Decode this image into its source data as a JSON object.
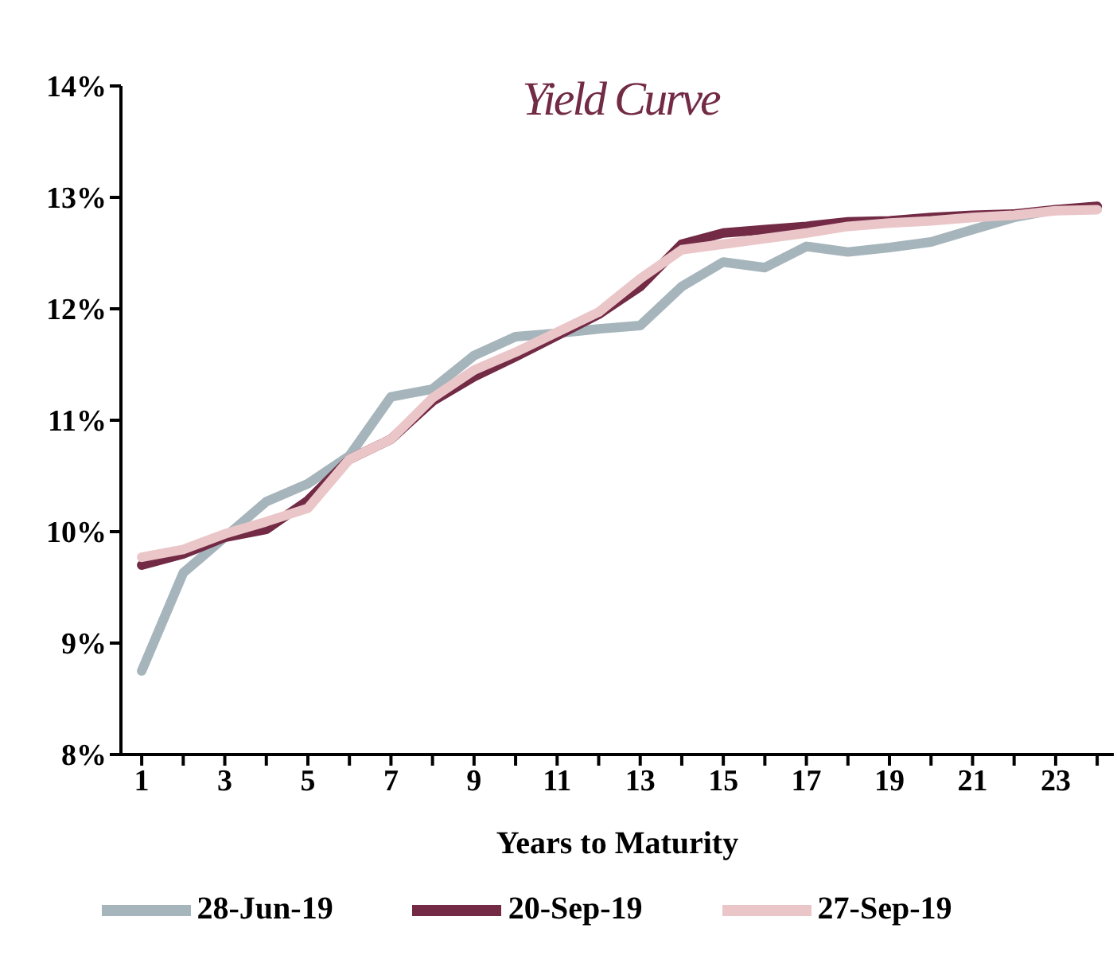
{
  "chart_data": {
    "type": "line",
    "title": "Yield Curve",
    "xlabel": "Years to Maturity",
    "x": [
      1,
      2,
      3,
      4,
      5,
      6,
      7,
      8,
      9,
      10,
      11,
      12,
      13,
      14,
      15,
      16,
      17,
      18,
      19,
      20,
      21,
      22,
      23,
      24
    ],
    "xlim": [
      0.5,
      24.4
    ],
    "xticks": [
      1,
      {
        "value": 2,
        "label": null
      },
      3,
      {
        "value": 4,
        "label": null
      },
      5,
      {
        "value": 6,
        "label": null
      },
      7,
      {
        "value": 8,
        "label": null
      },
      9,
      {
        "value": 10,
        "label": null
      },
      11,
      {
        "value": 12,
        "label": null
      },
      13,
      {
        "value": 14,
        "label": null
      },
      15,
      {
        "value": 16,
        "label": null
      },
      17,
      {
        "value": 18,
        "label": null
      },
      19,
      {
        "value": 20,
        "label": null
      },
      21,
      {
        "value": 22,
        "label": null
      },
      23,
      {
        "value": 24,
        "label": null
      }
    ],
    "series": [
      {
        "name": "28-Jun-19",
        "color": "#a5b5bb",
        "values": [
          8.75,
          9.63,
          9.95,
          10.27,
          10.43,
          10.68,
          11.21,
          11.28,
          11.58,
          11.75,
          11.78,
          11.82,
          11.85,
          12.2,
          12.42,
          12.37,
          12.56,
          12.51,
          12.55,
          12.6,
          12.71,
          12.82,
          12.89,
          12.9
        ]
      },
      {
        "name": "20-Sep-19",
        "color": "#722a45",
        "values": [
          9.7,
          9.8,
          9.95,
          10.02,
          10.28,
          10.65,
          10.83,
          11.17,
          11.39,
          11.57,
          11.76,
          11.95,
          12.2,
          12.58,
          12.68,
          12.71,
          12.74,
          12.78,
          12.79,
          12.82,
          12.84,
          12.85,
          12.89,
          12.92
        ]
      },
      {
        "name": "27-Sep-19",
        "color": "#ebc6c9",
        "values": [
          9.77,
          9.84,
          9.98,
          10.09,
          10.21,
          10.65,
          10.83,
          11.2,
          11.45,
          11.61,
          11.79,
          11.97,
          12.27,
          12.53,
          12.58,
          12.63,
          12.68,
          12.74,
          12.77,
          12.79,
          12.82,
          12.84,
          12.88,
          12.89
        ]
      }
    ],
    "ylim": [
      8,
      14
    ],
    "yticks": [
      {
        "value": 8,
        "label": "8%"
      },
      {
        "value": 9,
        "label": "9%"
      },
      {
        "value": 10,
        "label": "10%"
      },
      {
        "value": 11,
        "label": "11%"
      },
      {
        "value": 12,
        "label": "12%"
      },
      {
        "value": 13,
        "label": "13%"
      },
      {
        "value": 14,
        "label": "14%"
      }
    ],
    "grid": false,
    "legend": "bottom",
    "marker": "none",
    "line_style": "solid"
  }
}
